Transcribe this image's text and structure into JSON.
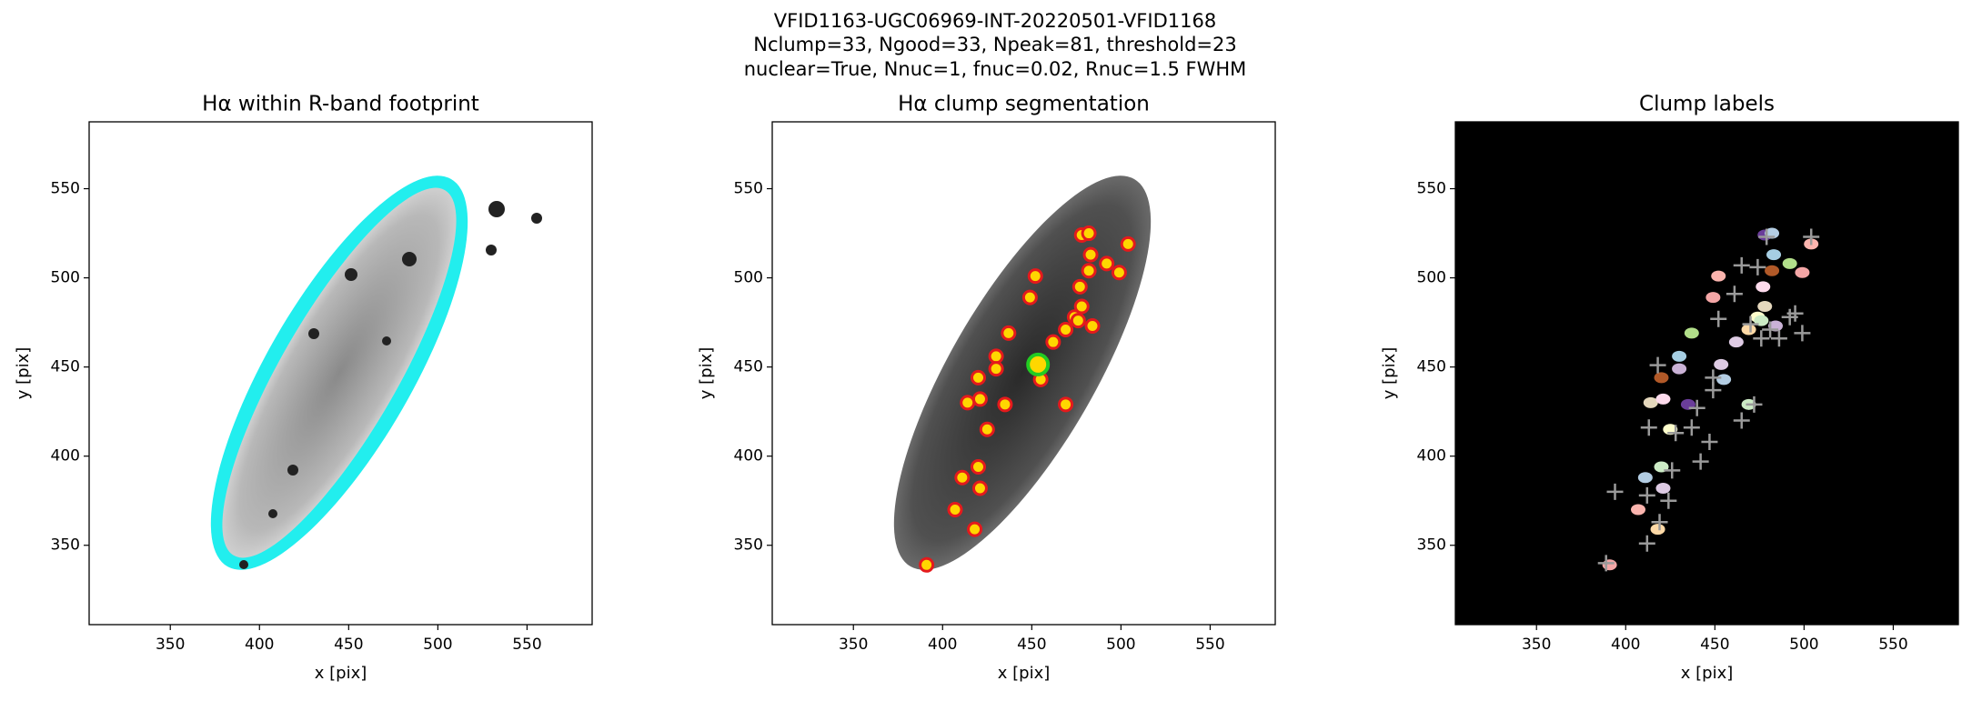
{
  "suptitle": [
    "VFID1163-UGC06969-INT-20220501-VFID1168",
    "Nclump=33, Ngood=33, Npeak=81, threshold=23",
    "nuclear=True, Nnuc=1, fnuc=0.02, Rnuc=1.5 FWHM"
  ],
  "chart_data": [
    {
      "type": "image",
      "title": "Hα within R-band footprint",
      "x_label": "x [pix]",
      "y_label": "y [pix]",
      "xlim": [
        304.5,
        586.5
      ],
      "ylim": [
        305.5,
        587.5
      ],
      "xticks": [
        350,
        400,
        450,
        500,
        550
      ],
      "yticks": [
        350,
        400,
        450,
        500,
        550
      ],
      "background": "#ffffff",
      "series": []
    },
    {
      "type": "scatter",
      "title": "Hα clump segmentation",
      "x_label": "x [pix]",
      "y_label": "y [pix]",
      "xlim": [
        304.5,
        586.5
      ],
      "ylim": [
        305.5,
        587.5
      ],
      "xticks": [
        350,
        400,
        450,
        500,
        550
      ],
      "yticks": [
        350,
        400,
        450,
        500,
        550
      ],
      "background": "#ffffff",
      "series": [
        {
          "marker": "circle",
          "color": "#e41a1c",
          "fill": "#ffd700",
          "x": [
            391,
            407,
            411,
            420,
            421,
            418,
            425,
            414,
            421,
            420,
            430,
            430,
            435,
            437,
            449,
            452,
            455,
            469,
            462,
            469,
            474,
            478,
            477,
            482,
            483,
            484,
            478,
            492,
            499,
            504,
            482,
            476
          ],
          "values": [
            339,
            370,
            388,
            394,
            382,
            359,
            415,
            430,
            432,
            444,
            456,
            449,
            429,
            469,
            489,
            501,
            443,
            429,
            464,
            471,
            478,
            484,
            495,
            504,
            513,
            473,
            524,
            508,
            503,
            519,
            525,
            476
          ]
        },
        {
          "marker": "ring",
          "color": "#22cc22",
          "fill": "#ffd700",
          "x": [
            453.5
          ],
          "values": [
            451.4
          ]
        }
      ]
    },
    {
      "type": "scatter",
      "title": "Clump labels",
      "x_label": "x [pix]",
      "y_label": "y [pix]",
      "xlim": [
        304.5,
        586.5
      ],
      "ylim": [
        305.5,
        587.5
      ],
      "xticks": [
        350,
        400,
        450,
        500,
        550
      ],
      "yticks": [
        350,
        400,
        450,
        500,
        550
      ],
      "background": "#000000",
      "series": [
        {
          "marker": "blob",
          "colors": [
            "#f4a6a6",
            "#fbb4ae",
            "#b3cde3",
            "#ccebc5",
            "#decbe4",
            "#fed9a6",
            "#ffffcc",
            "#e5d8bd",
            "#fddaec",
            "#b15928",
            "#a6cee3",
            "#cab2d6",
            "#6a3d9a",
            "#b2df8a"
          ],
          "x": [
            391,
            407,
            411,
            420,
            421,
            418,
            425,
            414,
            421,
            420,
            430,
            430,
            435,
            437,
            449,
            452,
            455,
            469,
            462,
            469,
            474,
            478,
            477,
            482,
            483,
            484,
            478,
            492,
            499,
            504,
            482,
            476,
            453.5
          ],
          "values": [
            339,
            370,
            388,
            394,
            382,
            359,
            415,
            430,
            432,
            444,
            456,
            449,
            429,
            469,
            489,
            501,
            443,
            429,
            464,
            471,
            478,
            484,
            495,
            504,
            513,
            473,
            524,
            508,
            503,
            519,
            525,
            476,
            451.4
          ]
        },
        {
          "marker": "plus",
          "color": "#9a9a9a",
          "x": [
            389,
            394,
            412,
            419,
            412,
            413,
            424,
            426,
            428,
            437,
            440,
            447,
            442,
            449,
            449,
            452,
            461,
            465,
            474,
            470,
            476,
            481,
            486,
            492,
            495,
            499,
            479,
            504,
            465,
            472,
            418
          ],
          "values": [
            340,
            380,
            351,
            363,
            378,
            416,
            375,
            392,
            413,
            416,
            427,
            408,
            397,
            444,
            437,
            477,
            491,
            507,
            506,
            474,
            466,
            471,
            466,
            478,
            480,
            469,
            523,
            523,
            420,
            429,
            451
          ]
        }
      ]
    }
  ]
}
